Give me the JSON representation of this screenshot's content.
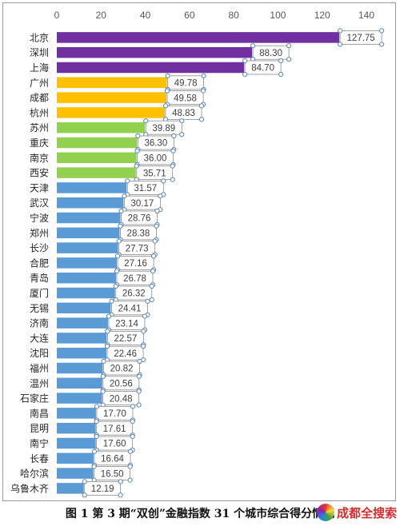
{
  "chart_data": {
    "type": "bar",
    "orientation": "horizontal",
    "categories": [
      "北京",
      "深圳",
      "上海",
      "广州",
      "成都",
      "杭州",
      "苏州",
      "重庆",
      "南京",
      "西安",
      "天津",
      "武汉",
      "宁波",
      "郑州",
      "长沙",
      "合肥",
      "青岛",
      "厦门",
      "无锡",
      "济南",
      "大连",
      "沈阳",
      "福州",
      "温州",
      "石家庄",
      "南昌",
      "昆明",
      "南宁",
      "长春",
      "哈尔滨",
      "乌鲁木齐"
    ],
    "values": [
      127.75,
      88.3,
      84.7,
      49.78,
      49.58,
      48.83,
      39.89,
      36.3,
      36.0,
      35.71,
      31.57,
      30.17,
      28.76,
      28.38,
      27.73,
      27.16,
      26.78,
      26.32,
      24.41,
      23.14,
      22.57,
      22.46,
      20.82,
      20.56,
      20.48,
      17.7,
      17.61,
      17.6,
      16.64,
      16.5,
      12.19
    ],
    "value_labels": [
      "127.75",
      "88.30",
      "84.70",
      "49.78",
      "49.58",
      "48.83",
      "39.89",
      "36.30",
      "36.00",
      "35.71",
      "31.57",
      "30.17",
      "28.76",
      "28.38",
      "27.73",
      "27.16",
      "26.78",
      "26.32",
      "24.41",
      "23.14",
      "22.57",
      "22.46",
      "20.82",
      "20.56",
      "20.48",
      "17.70",
      "17.61",
      "17.60",
      "16.64",
      "16.50",
      "12.19"
    ],
    "colors": [
      "#7030a0",
      "#7030a0",
      "#7030a0",
      "#ffc000",
      "#ffc000",
      "#ffc000",
      "#92d050",
      "#92d050",
      "#92d050",
      "#92d050",
      "#5b9bd5",
      "#5b9bd5",
      "#5b9bd5",
      "#5b9bd5",
      "#5b9bd5",
      "#5b9bd5",
      "#5b9bd5",
      "#5b9bd5",
      "#5b9bd5",
      "#5b9bd5",
      "#5b9bd5",
      "#5b9bd5",
      "#5b9bd5",
      "#5b9bd5",
      "#5b9bd5",
      "#5b9bd5",
      "#5b9bd5",
      "#5b9bd5",
      "#5b9bd5",
      "#5b9bd5",
      "#5b9bd5"
    ],
    "xlim": [
      0,
      140
    ],
    "xticks": [
      "0",
      "20",
      "40",
      "60",
      "80",
      "100",
      "120",
      "140"
    ],
    "xaxis_position": "top",
    "grid": false,
    "legend": "none",
    "data_labels_selected": true
  },
  "caption": "图 1  第 3 期“双创”金融指数 31 个城市综合得分情况",
  "watermark": {
    "text": "成都全搜索"
  }
}
